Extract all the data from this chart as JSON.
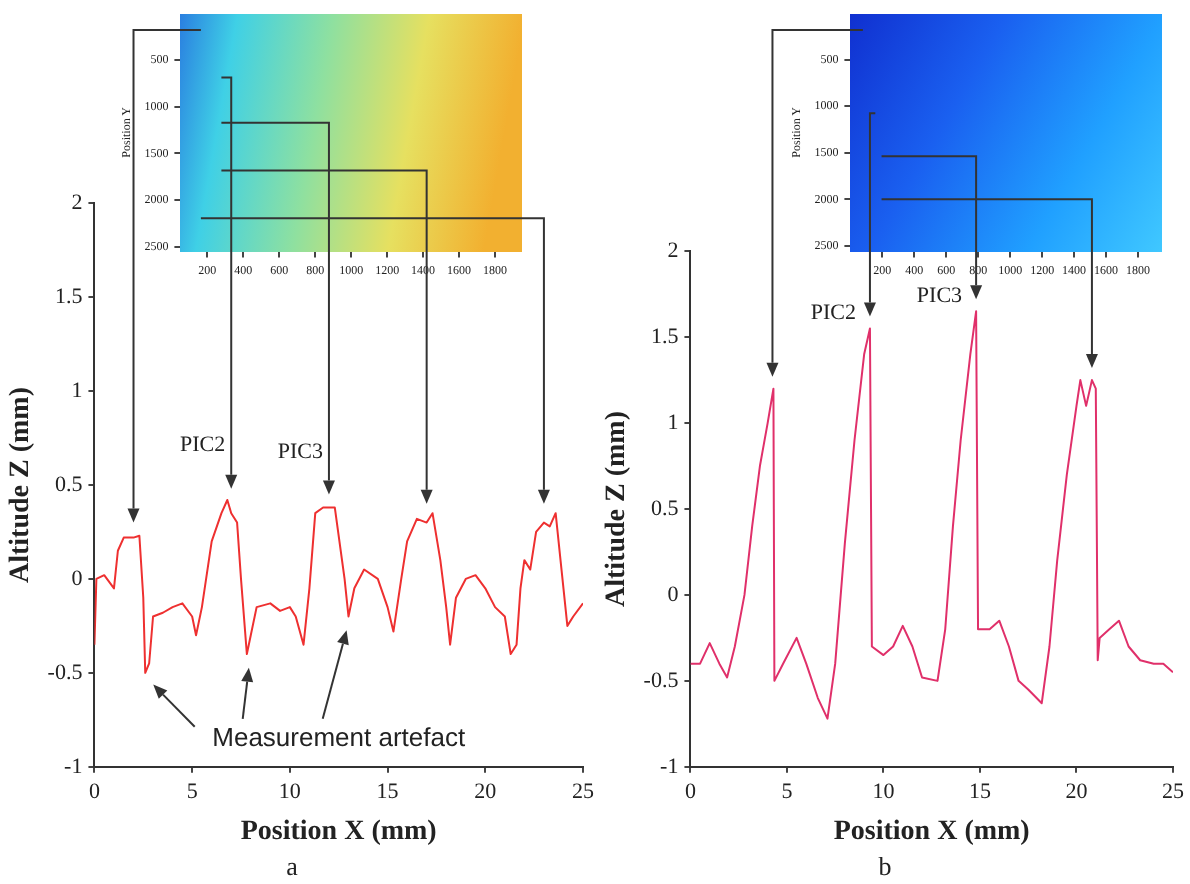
{
  "chart_data": [
    {
      "type": "line",
      "xlabel": "Position X (mm)",
      "ylabel": "Altitude Z (mm)",
      "subtitle": "a",
      "color": "#ee3030",
      "marker": "none",
      "grid": false,
      "legend": false,
      "xlim": [
        0,
        25
      ],
      "xticks": [
        0,
        5,
        10,
        15,
        20,
        25
      ],
      "ylim": [
        -1,
        2
      ],
      "yticks": [
        -1,
        -0.5,
        0,
        0.5,
        1,
        1.5,
        2
      ],
      "x": [
        0,
        0.1,
        0.5,
        1,
        1.2,
        1.5,
        2,
        2.3,
        2.5,
        2.6,
        2.8,
        3,
        3.5,
        4,
        4.5,
        5,
        5.2,
        5.5,
        6,
        6.5,
        6.8,
        7,
        7.3,
        7.5,
        7.8,
        8,
        8.3,
        9,
        9.5,
        10,
        10.3,
        10.7,
        11,
        11.3,
        11.7,
        12.3,
        12.8,
        13,
        13.3,
        13.8,
        14.5,
        15,
        15.3,
        15.7,
        16,
        16.5,
        17,
        17.3,
        17.7,
        18,
        18.2,
        18.5,
        19,
        19.5,
        20,
        20.5,
        21,
        21.3,
        21.6,
        21.8,
        22,
        22.3,
        22.6,
        23,
        23.3,
        23.6,
        23.9,
        24.2,
        24.5,
        25
      ],
      "values": [
        -0.35,
        0,
        0.02,
        -0.05,
        0.15,
        0.22,
        0.22,
        0.23,
        -0.1,
        -0.5,
        -0.45,
        -0.2,
        -0.18,
        -0.15,
        -0.13,
        -0.2,
        -0.3,
        -0.15,
        0.2,
        0.35,
        0.42,
        0.35,
        0.3,
        0,
        -0.4,
        -0.3,
        -0.15,
        -0.13,
        -0.17,
        -0.15,
        -0.2,
        -0.35,
        -0.05,
        0.35,
        0.38,
        0.38,
        0,
        -0.2,
        -0.05,
        0.05,
        0,
        -0.15,
        -0.28,
        0,
        0.2,
        0.32,
        0.3,
        0.35,
        0.1,
        -0.15,
        -0.35,
        -0.1,
        0,
        0.02,
        -0.05,
        -0.15,
        -0.2,
        -0.4,
        -0.35,
        -0.05,
        0.1,
        0.05,
        0.25,
        0.3,
        0.28,
        0.35,
        0.05,
        -0.25,
        -0.2,
        -0.13
      ],
      "annotations": [
        {
          "text": "PIC2",
          "x": 7,
          "y": 0.42
        },
        {
          "text": "PIC3",
          "x": 12,
          "y": 0.38
        },
        "Measurement artefact"
      ]
    },
    {
      "type": "scatter",
      "ylabel": "Position Y",
      "xlim": [
        50,
        1950
      ],
      "xticks": [
        200,
        400,
        600,
        800,
        1000,
        1200,
        1400,
        1600,
        1800
      ],
      "ylim": [
        2550,
        0
      ],
      "yticks": [
        500,
        1000,
        1500,
        2000,
        2500
      ]
    },
    {
      "type": "line",
      "xlabel": "Position X (mm)",
      "ylabel": "Altitude Z (mm)",
      "subtitle": "b",
      "color": "#e0306a",
      "marker": "none",
      "grid": false,
      "legend": false,
      "xlim": [
        0,
        25
      ],
      "xticks": [
        0,
        5,
        10,
        15,
        20,
        25
      ],
      "ylim": [
        -1,
        2
      ],
      "yticks": [
        -1,
        -0.5,
        0,
        0.5,
        1,
        1.5,
        2
      ],
      "x": [
        0,
        0.5,
        1,
        1.5,
        1.9,
        2.3,
        2.8,
        3.2,
        3.6,
        4,
        4.3,
        4.35,
        4.8,
        5.5,
        6,
        6.6,
        7.1,
        7.5,
        8,
        8.5,
        9,
        9.3,
        9.4,
        10,
        10.5,
        11,
        11.5,
        12,
        12.8,
        13.2,
        13.6,
        14,
        14.5,
        14.8,
        14.9,
        15.5,
        16,
        16.5,
        17,
        17.5,
        18.2,
        18.6,
        19,
        19.5,
        20,
        20.2,
        20.5,
        20.8,
        21,
        21.1,
        21.2,
        21.7,
        22.2,
        22.7,
        23.3,
        24,
        24.5,
        25
      ],
      "values": [
        -0.4,
        -0.4,
        -0.28,
        -0.4,
        -0.48,
        -0.3,
        0,
        0.4,
        0.75,
        1,
        1.2,
        -0.5,
        -0.4,
        -0.25,
        -0.4,
        -0.6,
        -0.72,
        -0.4,
        0.3,
        0.9,
        1.4,
        1.55,
        -0.3,
        -0.35,
        -0.3,
        -0.18,
        -0.3,
        -0.48,
        -0.5,
        -0.2,
        0.4,
        0.9,
        1.4,
        1.65,
        -0.2,
        -0.2,
        -0.15,
        -0.3,
        -0.5,
        -0.55,
        -0.63,
        -0.3,
        0.2,
        0.7,
        1.1,
        1.25,
        1.1,
        1.25,
        1.2,
        -0.38,
        -0.25,
        -0.2,
        -0.15,
        -0.3,
        -0.38,
        -0.4,
        -0.4,
        -0.45
      ],
      "annotations": [
        {
          "text": "PIC2",
          "x": 9.3,
          "y": 1.55
        },
        {
          "text": "PIC3",
          "x": 14.8,
          "y": 1.65
        }
      ]
    },
    {
      "type": "scatter",
      "ylabel": "Position Y",
      "xlim": [
        0,
        1950
      ],
      "xticks": [
        200,
        400,
        600,
        800,
        1000,
        1200,
        1400,
        1600,
        1800
      ],
      "ylim": [
        2560,
        0
      ],
      "yticks": [
        500,
        1000,
        1500,
        2000,
        2500
      ]
    }
  ]
}
